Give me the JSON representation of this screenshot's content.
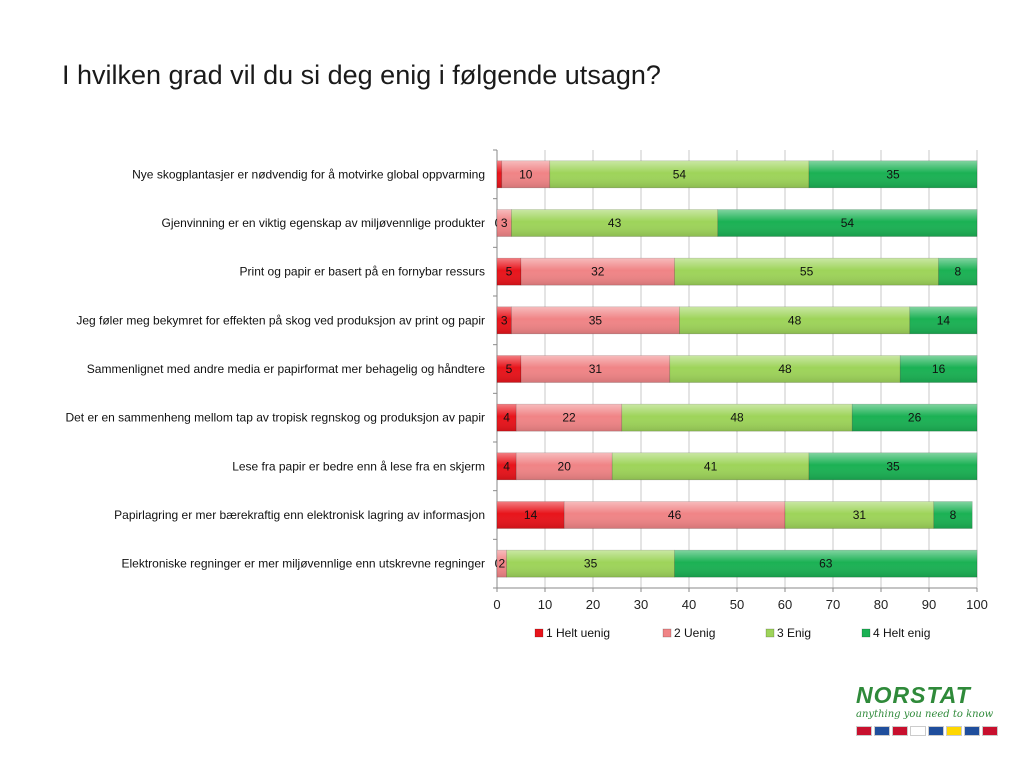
{
  "title": "I hvilken grad vil du si deg enig i følgende utsagn?",
  "logo": {
    "word": "NORSTAT",
    "tagline": "anything you need to know",
    "flag_colors": [
      "#c8102e",
      "#1f4e9c",
      "#c8102e",
      "#ffffff",
      "#1f4e9c",
      "#ffd700",
      "#1f4e9c",
      "#c8102e"
    ]
  },
  "chart_data": {
    "type": "bar",
    "orientation": "horizontal",
    "stacked": true,
    "title": "",
    "xlabel": "",
    "ylabel": "",
    "xlim": [
      0,
      100
    ],
    "xticks": [
      0,
      10,
      20,
      30,
      40,
      50,
      60,
      70,
      80,
      90,
      100
    ],
    "grid": true,
    "legend": "bottom",
    "categories": [
      "Nye skogplantasjer er nødvendig for å motvirke global oppvarming",
      "Gjenvinning er en viktig egenskap av miljøvennlige produkter",
      "Print og papir er basert på en fornybar ressurs",
      "Jeg føler meg bekymret for effekten på skog ved produksjon av print og papir",
      "Sammenlignet med andre media er papirformat mer behagelig og håndtere",
      "Det er en sammenheng mellom tap av tropisk regnskog og produksjon av papir",
      "Lese fra papir er bedre enn å lese fra en skjerm",
      "Papirlagring er mer bærekraftig enn elektronisk lagring av informasjon",
      "Elektroniske regninger er mer miljøvennlige enn utskrevne regninger"
    ],
    "series": [
      {
        "name": "1 Helt uenig",
        "color": "#e8141b",
        "values": [
          1,
          0,
          5,
          3,
          5,
          4,
          4,
          14,
          0
        ],
        "labels": [
          "",
          "0",
          "5",
          "3",
          "5",
          "4",
          "4",
          "14",
          "0"
        ]
      },
      {
        "name": "2 Uenig",
        "color": "#f08486",
        "values": [
          10,
          3,
          32,
          35,
          31,
          22,
          20,
          46,
          2
        ],
        "labels": [
          "10",
          "3",
          "32",
          "35",
          "31",
          "22",
          "20",
          "46",
          "2"
        ]
      },
      {
        "name": "3 Enig",
        "color": "#9ed45a",
        "values": [
          54,
          43,
          55,
          48,
          48,
          48,
          41,
          31,
          35
        ],
        "labels": [
          "54",
          "43",
          "55",
          "48",
          "48",
          "48",
          "41",
          "31",
          "35"
        ]
      },
      {
        "name": "4 Helt enig",
        "color": "#1bb154",
        "values": [
          35,
          54,
          8,
          14,
          16,
          26,
          35,
          8,
          63
        ],
        "labels": [
          "35",
          "54",
          "8",
          "14",
          "16",
          "26",
          "35",
          "8",
          "63"
        ]
      }
    ]
  }
}
